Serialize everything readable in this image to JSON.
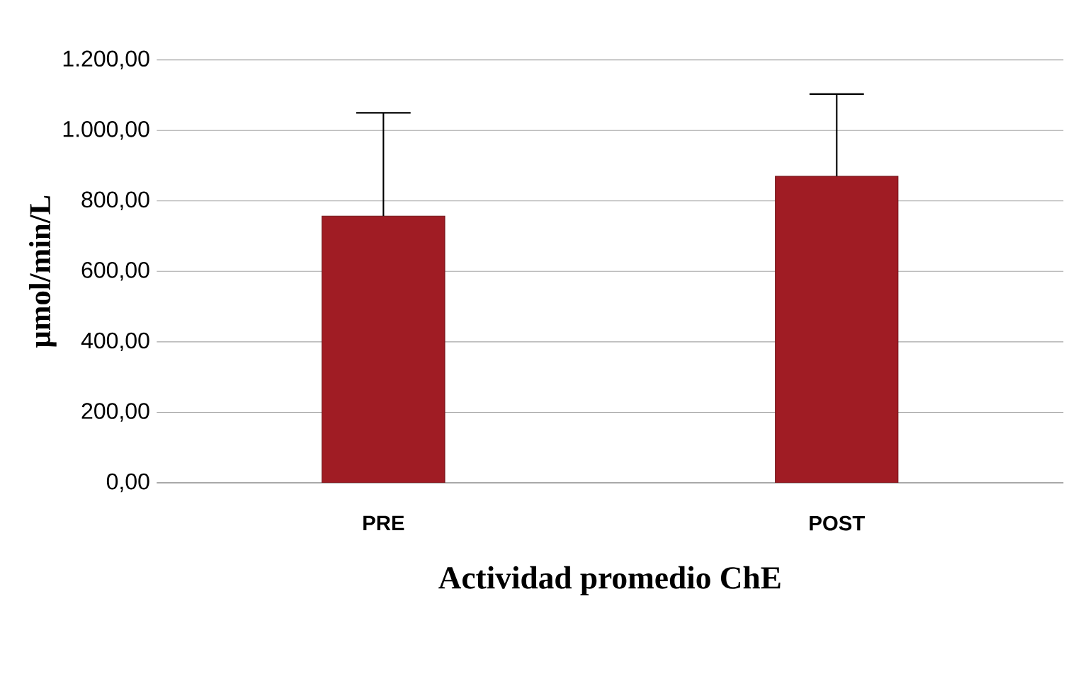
{
  "chart_data": {
    "type": "bar",
    "xlabel": "Actividad  promedio ChE",
    "ylabel": "µmol/min/L",
    "categories": [
      "PRE",
      "POST"
    ],
    "values": [
      757,
      870
    ],
    "errors": [
      [
        757,
        1050
      ],
      [
        870,
        1103
      ]
    ],
    "color": "#a01c24",
    "ylim": [
      0,
      1200
    ],
    "yticks": [
      {
        "value": 0,
        "label": "0,00"
      },
      {
        "value": 200,
        "label": "200,00"
      },
      {
        "value": 400,
        "label": "400,00"
      },
      {
        "value": 600,
        "label": "600,00"
      },
      {
        "value": 800,
        "label": "800,00"
      },
      {
        "value": 1000,
        "label": "1.000,00"
      },
      {
        "value": 1200,
        "label": "1.200,00"
      }
    ],
    "grid": "y"
  }
}
